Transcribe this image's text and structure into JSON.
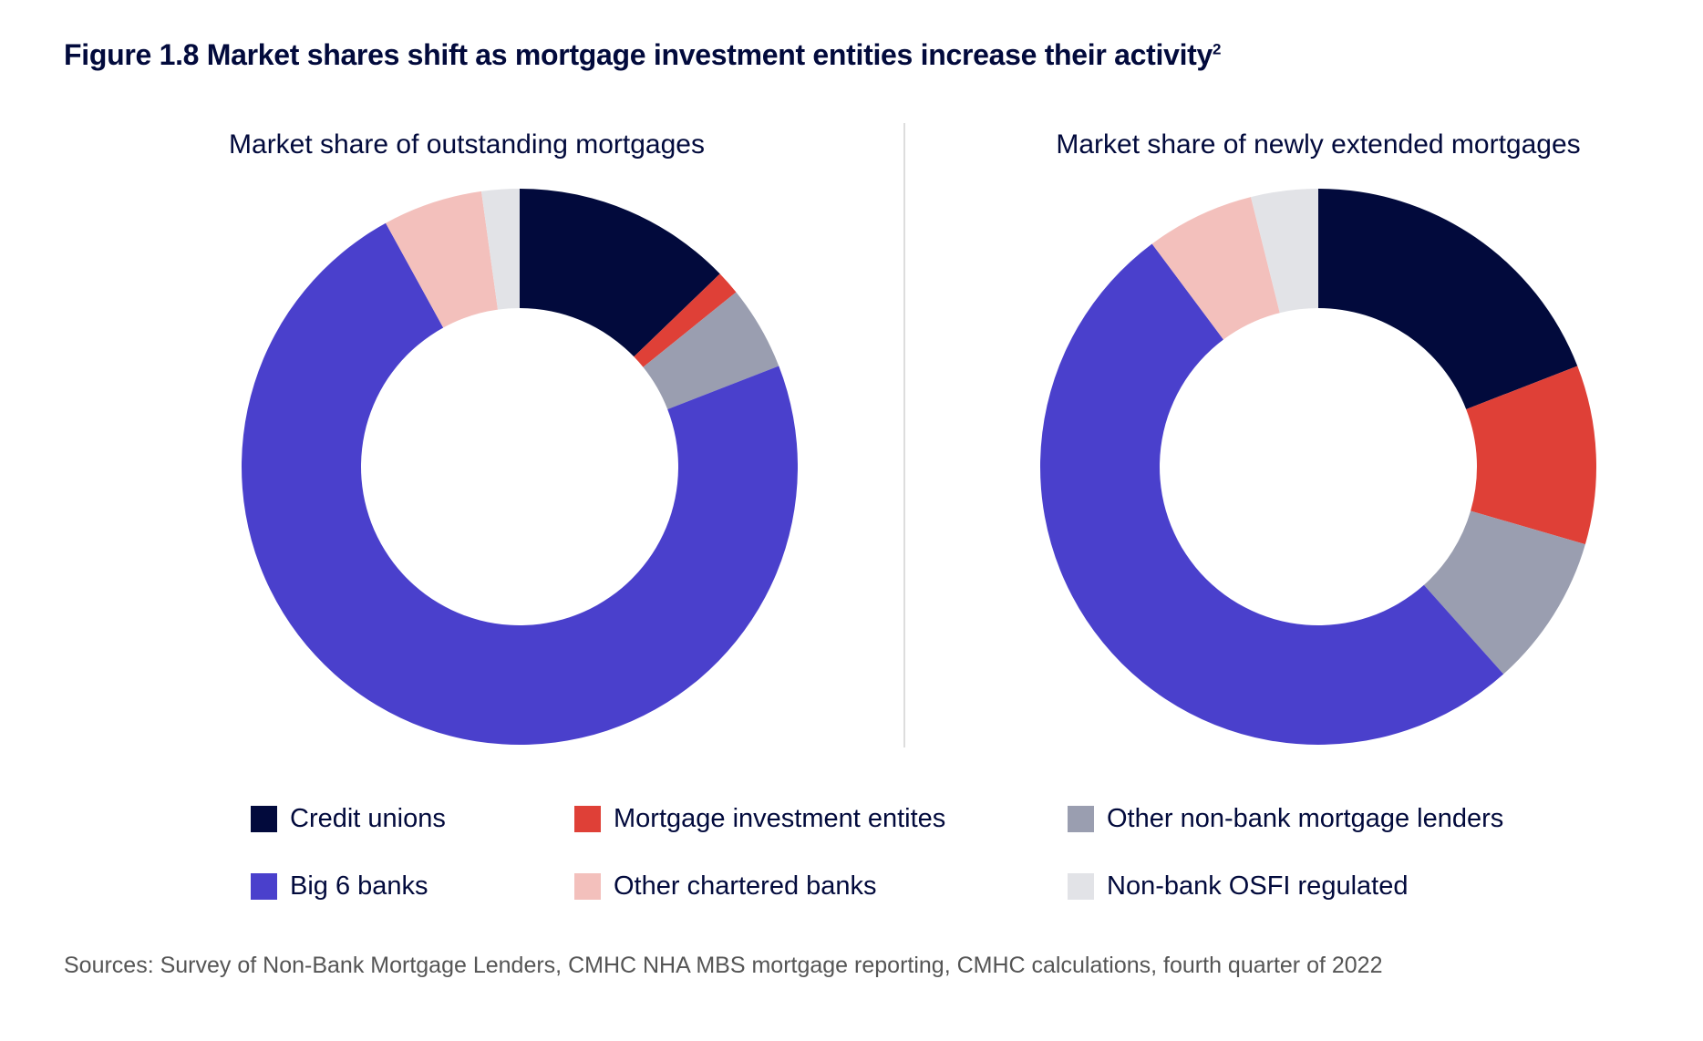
{
  "title": "Figure 1.8  Market shares shift as mortgage investment entities increase their activity",
  "title_superscript": "2",
  "source": "Sources: Survey of Non-Bank Mortgage Lenders, CMHC NHA MBS mortgage reporting, CMHC calculations, fourth quarter of 2022",
  "chart_data": [
    {
      "type": "pie",
      "subtype": "donut",
      "title": "Market share of outstanding mortgages",
      "categories": [
        "Credit unions",
        "Mortgage investment entites",
        "Other non-bank mortgage lenders",
        "Big 6 banks",
        "Other chartered banks",
        "Non-bank OSFI regulated"
      ],
      "values": [
        12.8,
        1.4,
        4.9,
        72.9,
        5.8,
        2.2
      ],
      "unit": "percent (estimated)"
    },
    {
      "type": "pie",
      "subtype": "donut",
      "title": "Market share of newly extended mortgages",
      "categories": [
        "Credit unions",
        "Mortgage investment entites",
        "Other non-bank mortgage lenders",
        "Big 6 banks",
        "Other chartered banks",
        "Non-bank OSFI regulated"
      ],
      "values": [
        19.1,
        10.4,
        8.9,
        51.4,
        6.3,
        3.9
      ],
      "unit": "percent (estimated)"
    }
  ],
  "legend": [
    {
      "label": "Credit unions",
      "color": "#020a3c"
    },
    {
      "label": "Mortgage investment entites",
      "color": "#df4037"
    },
    {
      "label": "Other non-bank mortgage lenders",
      "color": "#9a9eb0"
    },
    {
      "label": "Big 6 banks",
      "color": "#4a40cc"
    },
    {
      "label": "Other chartered banks",
      "color": "#f3c0bc"
    },
    {
      "label": "Non-bank OSFI regulated",
      "color": "#e2e3e7"
    }
  ]
}
